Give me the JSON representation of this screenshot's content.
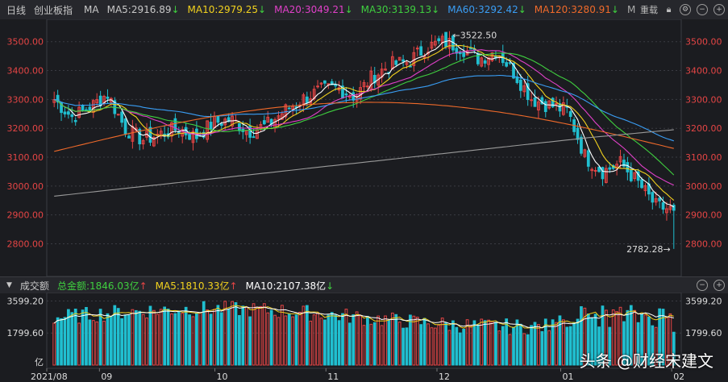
{
  "toolbar": {
    "period": "日线",
    "index_name": "创业板指",
    "ma_label": "MA",
    "ma5": {
      "label": "MA5:2916.89",
      "color": "#ffffff"
    },
    "ma10": {
      "label": "MA10:2979.25",
      "color": "#f2d21e"
    },
    "ma20": {
      "label": "MA20:3049.21",
      "color": "#e040c8"
    },
    "ma30": {
      "label": "MA30:3139.13",
      "color": "#3fcf3f"
    },
    "ma60": {
      "label": "MA60:3292.42",
      "color": "#3a9ef5"
    },
    "ma120": {
      "label": "MA120:3280.91",
      "color": "#f06a2a"
    },
    "ma250_label": "M",
    "reweight_label": "重载",
    "down_arrow": "↓"
  },
  "volume_bar": {
    "title": "成交额",
    "total": {
      "label": "总金额:1846.03亿",
      "arrow": "↑",
      "color": "#3fcf3f"
    },
    "ma5": {
      "label": "MA5:1810.33亿",
      "arrow": "↑",
      "color": "#f2d21e"
    },
    "ma10": {
      "label": "MA10:2107.38亿",
      "arrow": "↓",
      "color": "#ffffff"
    }
  },
  "colors": {
    "up": "#e54545",
    "down": "#21bfd0",
    "grid": "#3a3b42",
    "bg": "#1b1c20"
  },
  "price_axis": {
    "ticks": [
      "3500.00",
      "3400.00",
      "3300.00",
      "3200.00",
      "3100.00",
      "3000.00",
      "2900.00",
      "2800.00"
    ],
    "min": 2740,
    "max": 3555
  },
  "volume_axis": {
    "ticks": [
      "3599.20",
      "1799.60"
    ],
    "unit": "亿",
    "max": 3599.2
  },
  "annotations": {
    "high": "3522.50",
    "low": "2782.28"
  },
  "x_axis": {
    "labels": [
      "2021/08",
      "09",
      "10",
      "11",
      "12",
      "01",
      "02"
    ]
  },
  "chart_data": {
    "type": "candlestick",
    "price_series_anchor_closes": [
      3300,
      3240,
      3270,
      3320,
      3200,
      3160,
      3180,
      3200,
      3170,
      3220,
      3230,
      3190,
      3210,
      3260,
      3300,
      3330,
      3340,
      3310,
      3380,
      3420,
      3430,
      3480,
      3500,
      3480,
      3440,
      3470,
      3390,
      3300,
      3280,
      3260,
      3100,
      3050,
      3080,
      3010,
      2930,
      2916
    ],
    "ma_lines": [
      {
        "name": "MA5",
        "value": 2916.89
      },
      {
        "name": "MA10",
        "value": 2979.25
      },
      {
        "name": "MA20",
        "value": 3049.21
      },
      {
        "name": "MA30",
        "value": 3139.13
      },
      {
        "name": "MA60",
        "value": 3292.42
      },
      {
        "name": "MA120",
        "value": 3280.91
      }
    ],
    "high": 3522.5,
    "low": 2782.28,
    "volume_max": 3599.2,
    "volume_last": 1846.03
  },
  "watermark": "头条 @财经宋建文"
}
